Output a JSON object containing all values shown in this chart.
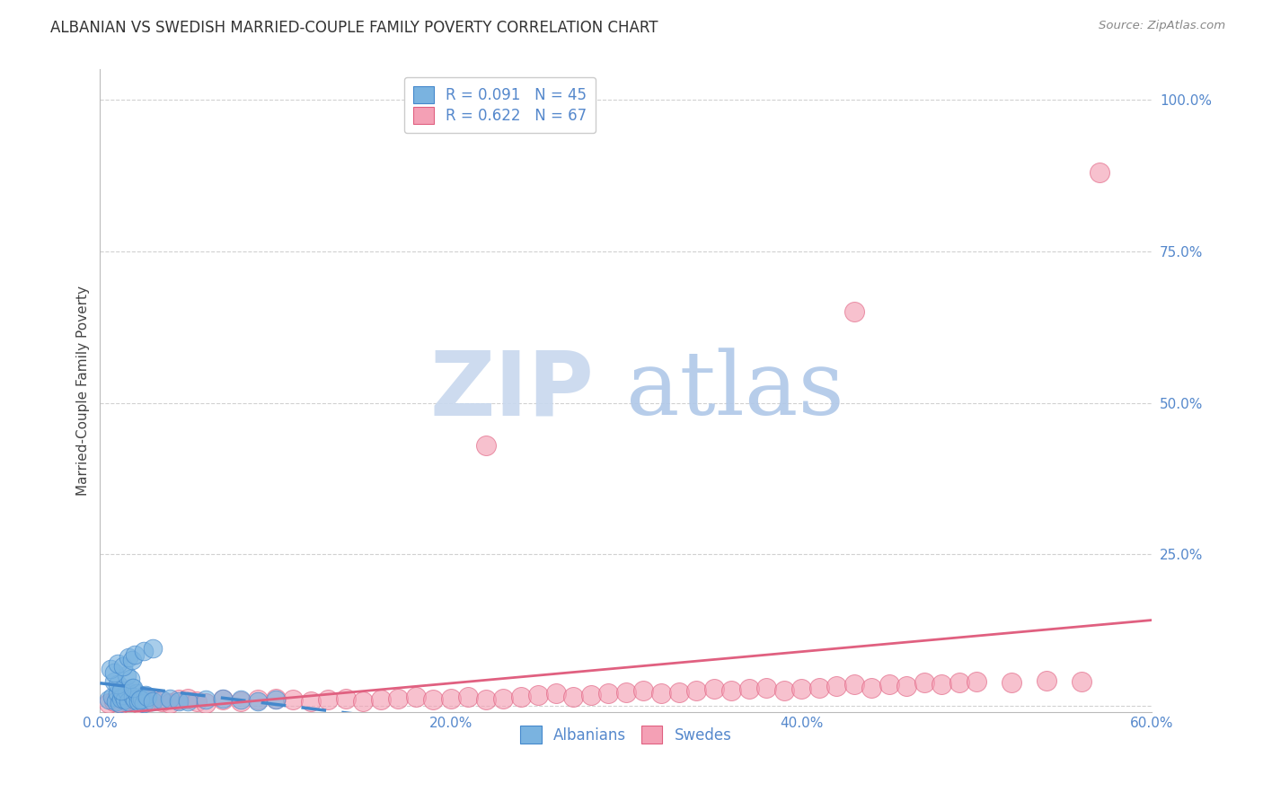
{
  "title": "ALBANIAN VS SWEDISH MARRIED-COUPLE FAMILY POVERTY CORRELATION CHART",
  "source": "Source: ZipAtlas.com",
  "ylabel": "Married-Couple Family Poverty",
  "xlabel": "",
  "xlim": [
    0.0,
    0.6
  ],
  "ylim": [
    -0.01,
    1.05
  ],
  "yticks": [
    0.0,
    0.25,
    0.5,
    0.75,
    1.0
  ],
  "ytick_labels": [
    "",
    "25.0%",
    "50.0%",
    "75.0%",
    "100.0%"
  ],
  "xtick_labels": [
    "0.0%",
    "",
    "20.0%",
    "",
    "40.0%",
    "",
    "60.0%"
  ],
  "xticks": [
    0.0,
    0.1,
    0.2,
    0.3,
    0.4,
    0.5,
    0.6
  ],
  "watermark_zip": "ZIP",
  "watermark_atlas": "atlas",
  "legend_label1": "R = 0.091   N = 45",
  "legend_label2": "R = 0.622   N = 67",
  "legend_label_albanians": "Albanians",
  "legend_label_swedes": "Swedes",
  "albanian_scatter_x": [
    0.005,
    0.007,
    0.009,
    0.01,
    0.011,
    0.012,
    0.013,
    0.014,
    0.015,
    0.016,
    0.018,
    0.019,
    0.02,
    0.021,
    0.022,
    0.024,
    0.025,
    0.026,
    0.008,
    0.01,
    0.012,
    0.015,
    0.017,
    0.019,
    0.023,
    0.027,
    0.03,
    0.035,
    0.04,
    0.045,
    0.006,
    0.008,
    0.01,
    0.013,
    0.016,
    0.018,
    0.02,
    0.025,
    0.03,
    0.05,
    0.06,
    0.07,
    0.08,
    0.09,
    0.1
  ],
  "albanian_scatter_y": [
    0.01,
    0.015,
    0.008,
    0.02,
    0.005,
    0.012,
    0.018,
    0.01,
    0.025,
    0.008,
    0.03,
    0.015,
    0.01,
    0.02,
    0.008,
    0.012,
    0.005,
    0.018,
    0.04,
    0.035,
    0.025,
    0.05,
    0.045,
    0.03,
    0.01,
    0.015,
    0.008,
    0.01,
    0.012,
    0.008,
    0.06,
    0.055,
    0.07,
    0.065,
    0.08,
    0.075,
    0.085,
    0.09,
    0.095,
    0.008,
    0.01,
    0.012,
    0.01,
    0.008,
    0.01
  ],
  "swedish_scatter_x": [
    0.005,
    0.008,
    0.01,
    0.012,
    0.015,
    0.018,
    0.02,
    0.022,
    0.025,
    0.028,
    0.03,
    0.035,
    0.04,
    0.045,
    0.05,
    0.055,
    0.06,
    0.07,
    0.08,
    0.09,
    0.1,
    0.11,
    0.12,
    0.13,
    0.14,
    0.15,
    0.16,
    0.17,
    0.18,
    0.19,
    0.2,
    0.21,
    0.22,
    0.23,
    0.24,
    0.25,
    0.26,
    0.27,
    0.28,
    0.29,
    0.3,
    0.31,
    0.32,
    0.33,
    0.34,
    0.35,
    0.36,
    0.37,
    0.38,
    0.39,
    0.4,
    0.41,
    0.42,
    0.43,
    0.44,
    0.45,
    0.46,
    0.47,
    0.48,
    0.49,
    0.5,
    0.52,
    0.54,
    0.56,
    0.43,
    0.22,
    0.57
  ],
  "swedish_scatter_y": [
    0.005,
    0.008,
    0.01,
    0.005,
    0.008,
    0.01,
    0.008,
    0.005,
    0.01,
    0.008,
    0.01,
    0.008,
    0.005,
    0.01,
    0.012,
    0.008,
    0.005,
    0.01,
    0.008,
    0.01,
    0.012,
    0.01,
    0.008,
    0.01,
    0.012,
    0.008,
    0.01,
    0.012,
    0.015,
    0.01,
    0.012,
    0.015,
    0.01,
    0.012,
    0.015,
    0.018,
    0.02,
    0.015,
    0.018,
    0.02,
    0.022,
    0.025,
    0.02,
    0.022,
    0.025,
    0.028,
    0.025,
    0.028,
    0.03,
    0.025,
    0.028,
    0.03,
    0.032,
    0.035,
    0.03,
    0.035,
    0.032,
    0.038,
    0.035,
    0.038,
    0.04,
    0.038,
    0.042,
    0.04,
    0.65,
    0.43,
    0.88
  ],
  "albanian_color": "#7ab3e0",
  "swedish_color": "#f4a0b5",
  "albanian_line_color": "#4488cc",
  "swedish_line_color": "#e06080",
  "title_fontsize": 12,
  "axis_label_fontsize": 11,
  "tick_fontsize": 11,
  "tick_color": "#5588cc",
  "legend_fontsize": 12,
  "watermark_color_zip": "#c8d8ee",
  "watermark_color_atlas": "#b0c8e8",
  "background_color": "#ffffff",
  "grid_color": "#cccccc",
  "spine_color": "#bbbbbb"
}
